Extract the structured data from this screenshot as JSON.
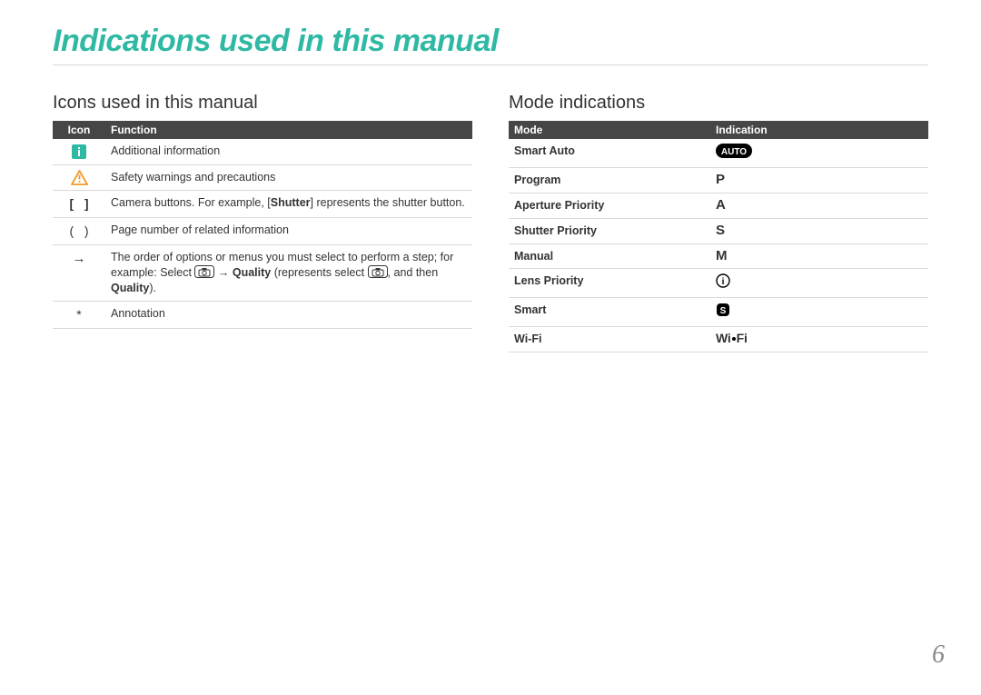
{
  "colors": {
    "accent_teal": "#2fb9a4",
    "warn_orange": "#f19a2a",
    "header_bg_left": "#464646",
    "header_bg_right": "#464646",
    "text": "#333333",
    "grid": "#d9d9d9",
    "page_number": "#888888"
  },
  "page": {
    "title": "Indications used in this manual",
    "number": "6"
  },
  "left": {
    "heading": "Icons used in this manual",
    "table": {
      "headers": [
        "Icon",
        "Function"
      ],
      "rows": [
        {
          "icon": "info-note",
          "function_html": "Additional information"
        },
        {
          "icon": "warning",
          "function_html": "Safety warnings and precautions"
        },
        {
          "icon": "brackets",
          "function_html": "Camera buttons. For example, [<b>Shutter</b>] represents the shutter button."
        },
        {
          "icon": "parens",
          "function_html": "Page number of related information"
        },
        {
          "icon": "arrow",
          "function_html": "The order of options or menus you must select to perform a step; for example: Select <svg width=\"22\" height=\"14\" viewBox=\"0 0 22 14\" style=\"vertical-align:-2px\"><rect x=\"0.5\" y=\"0.5\" width=\"21\" height=\"13\" rx=\"3\" fill=\"none\" stroke=\"#333\"/><rect x=\"5\" y=\"5\" width=\"12\" height=\"7\" rx=\"1.5\" fill=\"none\" stroke=\"#333\"/><circle cx=\"11\" cy=\"8.5\" r=\"2.2\" fill=\"none\" stroke=\"#333\"/><rect x=\"8.5\" y=\"3\" width=\"5\" height=\"2\" fill=\"#333\"/></svg> → <b>Quality</b> (represents select <svg width=\"22\" height=\"14\" viewBox=\"0 0 22 14\" style=\"vertical-align:-2px\"><rect x=\"0.5\" y=\"0.5\" width=\"21\" height=\"13\" rx=\"3\" fill=\"none\" stroke=\"#333\"/><rect x=\"5\" y=\"5\" width=\"12\" height=\"7\" rx=\"1.5\" fill=\"none\" stroke=\"#333\"/><circle cx=\"11\" cy=\"8.5\" r=\"2.2\" fill=\"none\" stroke=\"#333\"/><rect x=\"8.5\" y=\"3\" width=\"5\" height=\"2\" fill=\"#333\"/></svg>, and then <b>Quality</b>)."
        },
        {
          "icon": "asterisk",
          "function_html": "Annotation"
        }
      ]
    }
  },
  "right": {
    "heading": "Mode indications",
    "table": {
      "headers": [
        "Mode",
        "Indication"
      ],
      "rows": [
        {
          "mode": "Smart Auto",
          "indication": "auto"
        },
        {
          "mode": "Program",
          "indication": "P"
        },
        {
          "mode": "Aperture Priority",
          "indication": "A"
        },
        {
          "mode": "Shutter Priority",
          "indication": "S"
        },
        {
          "mode": "Manual",
          "indication": "M"
        },
        {
          "mode": "Lens Priority",
          "indication": "i-circle"
        },
        {
          "mode": "Smart",
          "indication": "s-rounded"
        },
        {
          "mode": "Wi-Fi",
          "indication": "wifi"
        }
      ]
    }
  }
}
